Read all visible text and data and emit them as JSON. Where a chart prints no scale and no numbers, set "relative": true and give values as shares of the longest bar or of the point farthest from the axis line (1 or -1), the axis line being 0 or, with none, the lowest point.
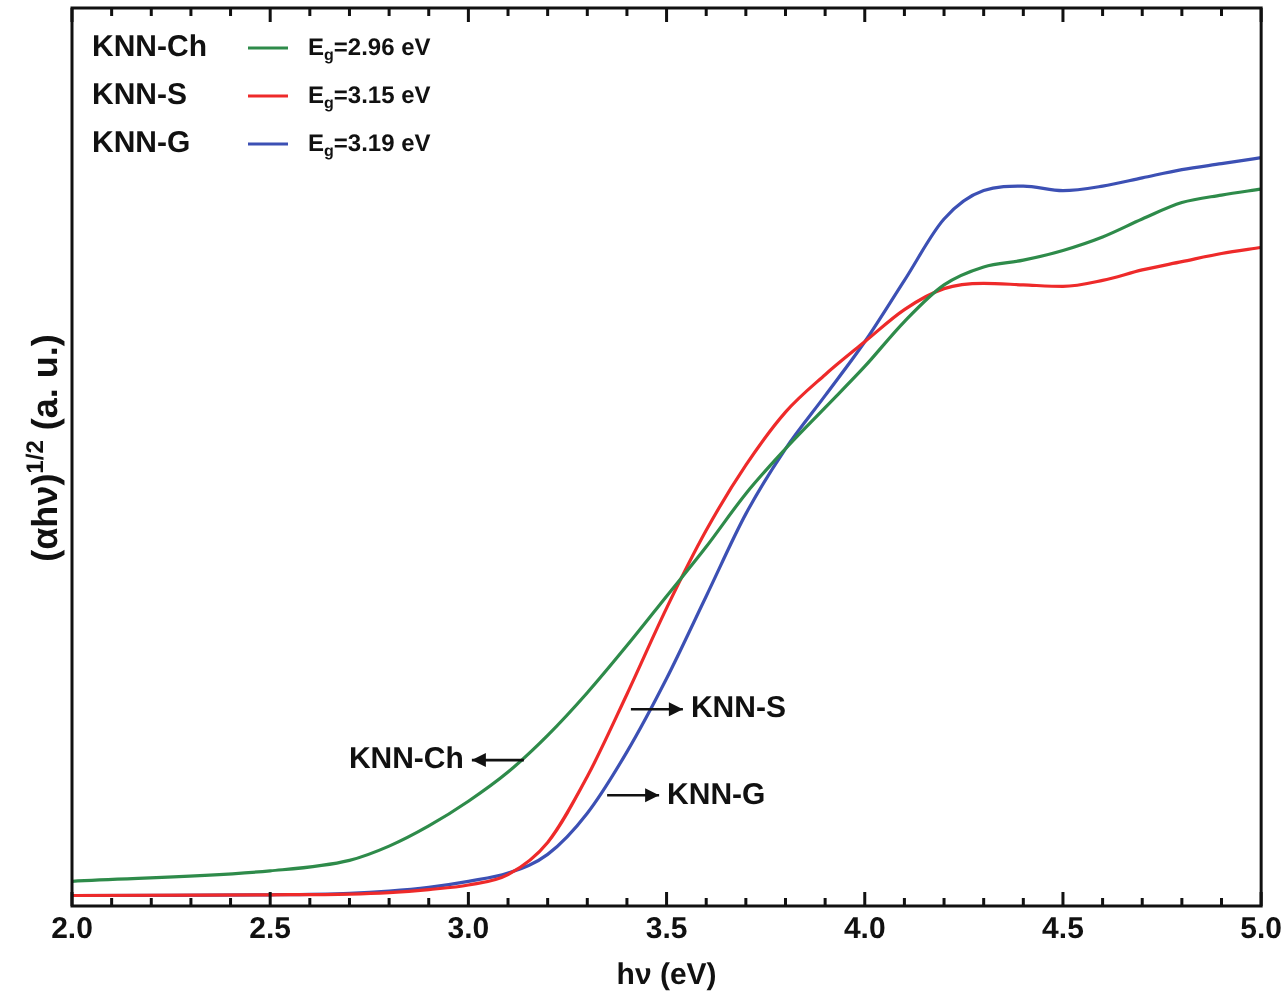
{
  "chart_data": {
    "type": "line",
    "xlabel": "hν (eV)",
    "ylabel": "(αhν)$^{1/2}$ (a. u.)",
    "relative": true,
    "legend": "top left",
    "tick_labels": "x",
    "grid": false,
    "marker": "none",
    "line_style": "solid",
    "xlim": [
      2.0,
      5.0
    ],
    "xticks": [
      {
        "value": 2.0,
        "label": "2.0"
      },
      {
        "value": 2.1,
        "label": null
      },
      {
        "value": 2.2,
        "label": null
      },
      {
        "value": 2.3,
        "label": null
      },
      {
        "value": 2.4,
        "label": null
      },
      {
        "value": 2.5,
        "label": "2.5"
      },
      {
        "value": 2.6,
        "label": null
      },
      {
        "value": 2.7,
        "label": null
      },
      {
        "value": 2.8,
        "label": null
      },
      {
        "value": 2.9,
        "label": null
      },
      {
        "value": 3.0,
        "label": "3.0"
      },
      {
        "value": 3.1,
        "label": null
      },
      {
        "value": 3.2,
        "label": null
      },
      {
        "value": 3.3,
        "label": null
      },
      {
        "value": 3.4,
        "label": null
      },
      {
        "value": 3.5,
        "label": "3.5"
      },
      {
        "value": 3.6,
        "label": null
      },
      {
        "value": 3.7,
        "label": null
      },
      {
        "value": 3.8,
        "label": null
      },
      {
        "value": 3.9,
        "label": null
      },
      {
        "value": 4.0,
        "label": "4.0"
      },
      {
        "value": 4.1,
        "label": null
      },
      {
        "value": 4.2,
        "label": null
      },
      {
        "value": 4.3,
        "label": null
      },
      {
        "value": 4.4,
        "label": null
      },
      {
        "value": 4.5,
        "label": "4.5"
      },
      {
        "value": 4.6,
        "label": null
      },
      {
        "value": 4.7,
        "label": null
      },
      {
        "value": 4.8,
        "label": null
      },
      {
        "value": 4.9,
        "label": null
      },
      {
        "value": 5.0,
        "label": "5.0"
      }
    ],
    "x": [
      2.0,
      2.5,
      2.7,
      2.8,
      2.9,
      3.0,
      3.1,
      3.2,
      3.3,
      3.4,
      3.5,
      3.6,
      3.7,
      3.8,
      3.9,
      4.0,
      4.1,
      4.2,
      4.3,
      4.4,
      4.5,
      4.6,
      4.7,
      4.8,
      4.9,
      5.0
    ],
    "series": [
      {
        "name": "KNN-Ch",
        "color": "#2e8b4a",
        "values": [
          0.033,
          0.047,
          0.061,
          0.08,
          0.107,
          0.14,
          0.179,
          0.228,
          0.285,
          0.348,
          0.414,
          0.48,
          0.551,
          0.611,
          0.666,
          0.721,
          0.781,
          0.83,
          0.854,
          0.863,
          0.876,
          0.894,
          0.918,
          0.94,
          0.95,
          0.958
        ]
      },
      {
        "name": "KNN-S",
        "color": "#ee2a2a",
        "values": [
          0.014,
          0.015,
          0.016,
          0.018,
          0.022,
          0.028,
          0.042,
          0.085,
          0.173,
          0.283,
          0.398,
          0.502,
          0.589,
          0.66,
          0.71,
          0.754,
          0.797,
          0.825,
          0.832,
          0.83,
          0.828,
          0.836,
          0.85,
          0.861,
          0.872,
          0.88
        ]
      },
      {
        "name": "KNN-G",
        "color": "#3c50b4",
        "values": [
          0.014,
          0.015,
          0.017,
          0.02,
          0.025,
          0.033,
          0.044,
          0.069,
          0.124,
          0.206,
          0.304,
          0.414,
          0.524,
          0.611,
          0.682,
          0.754,
          0.836,
          0.918,
          0.956,
          0.962,
          0.956,
          0.962,
          0.973,
          0.984,
          0.992,
          1.0
        ]
      }
    ],
    "annotations": [
      "E$_{g}$=2.96 eV",
      "E$_{g}$=3.15 eV",
      "E$_{g}$=3.19 eV",
      {
        "text": "KNN-Ch",
        "x": 3.14,
        "y": 0.195
      },
      {
        "text": "KNN-S",
        "x": 3.41,
        "y": 0.263
      },
      {
        "text": "KNN-G",
        "x": 3.35,
        "y": 0.148
      }
    ]
  }
}
